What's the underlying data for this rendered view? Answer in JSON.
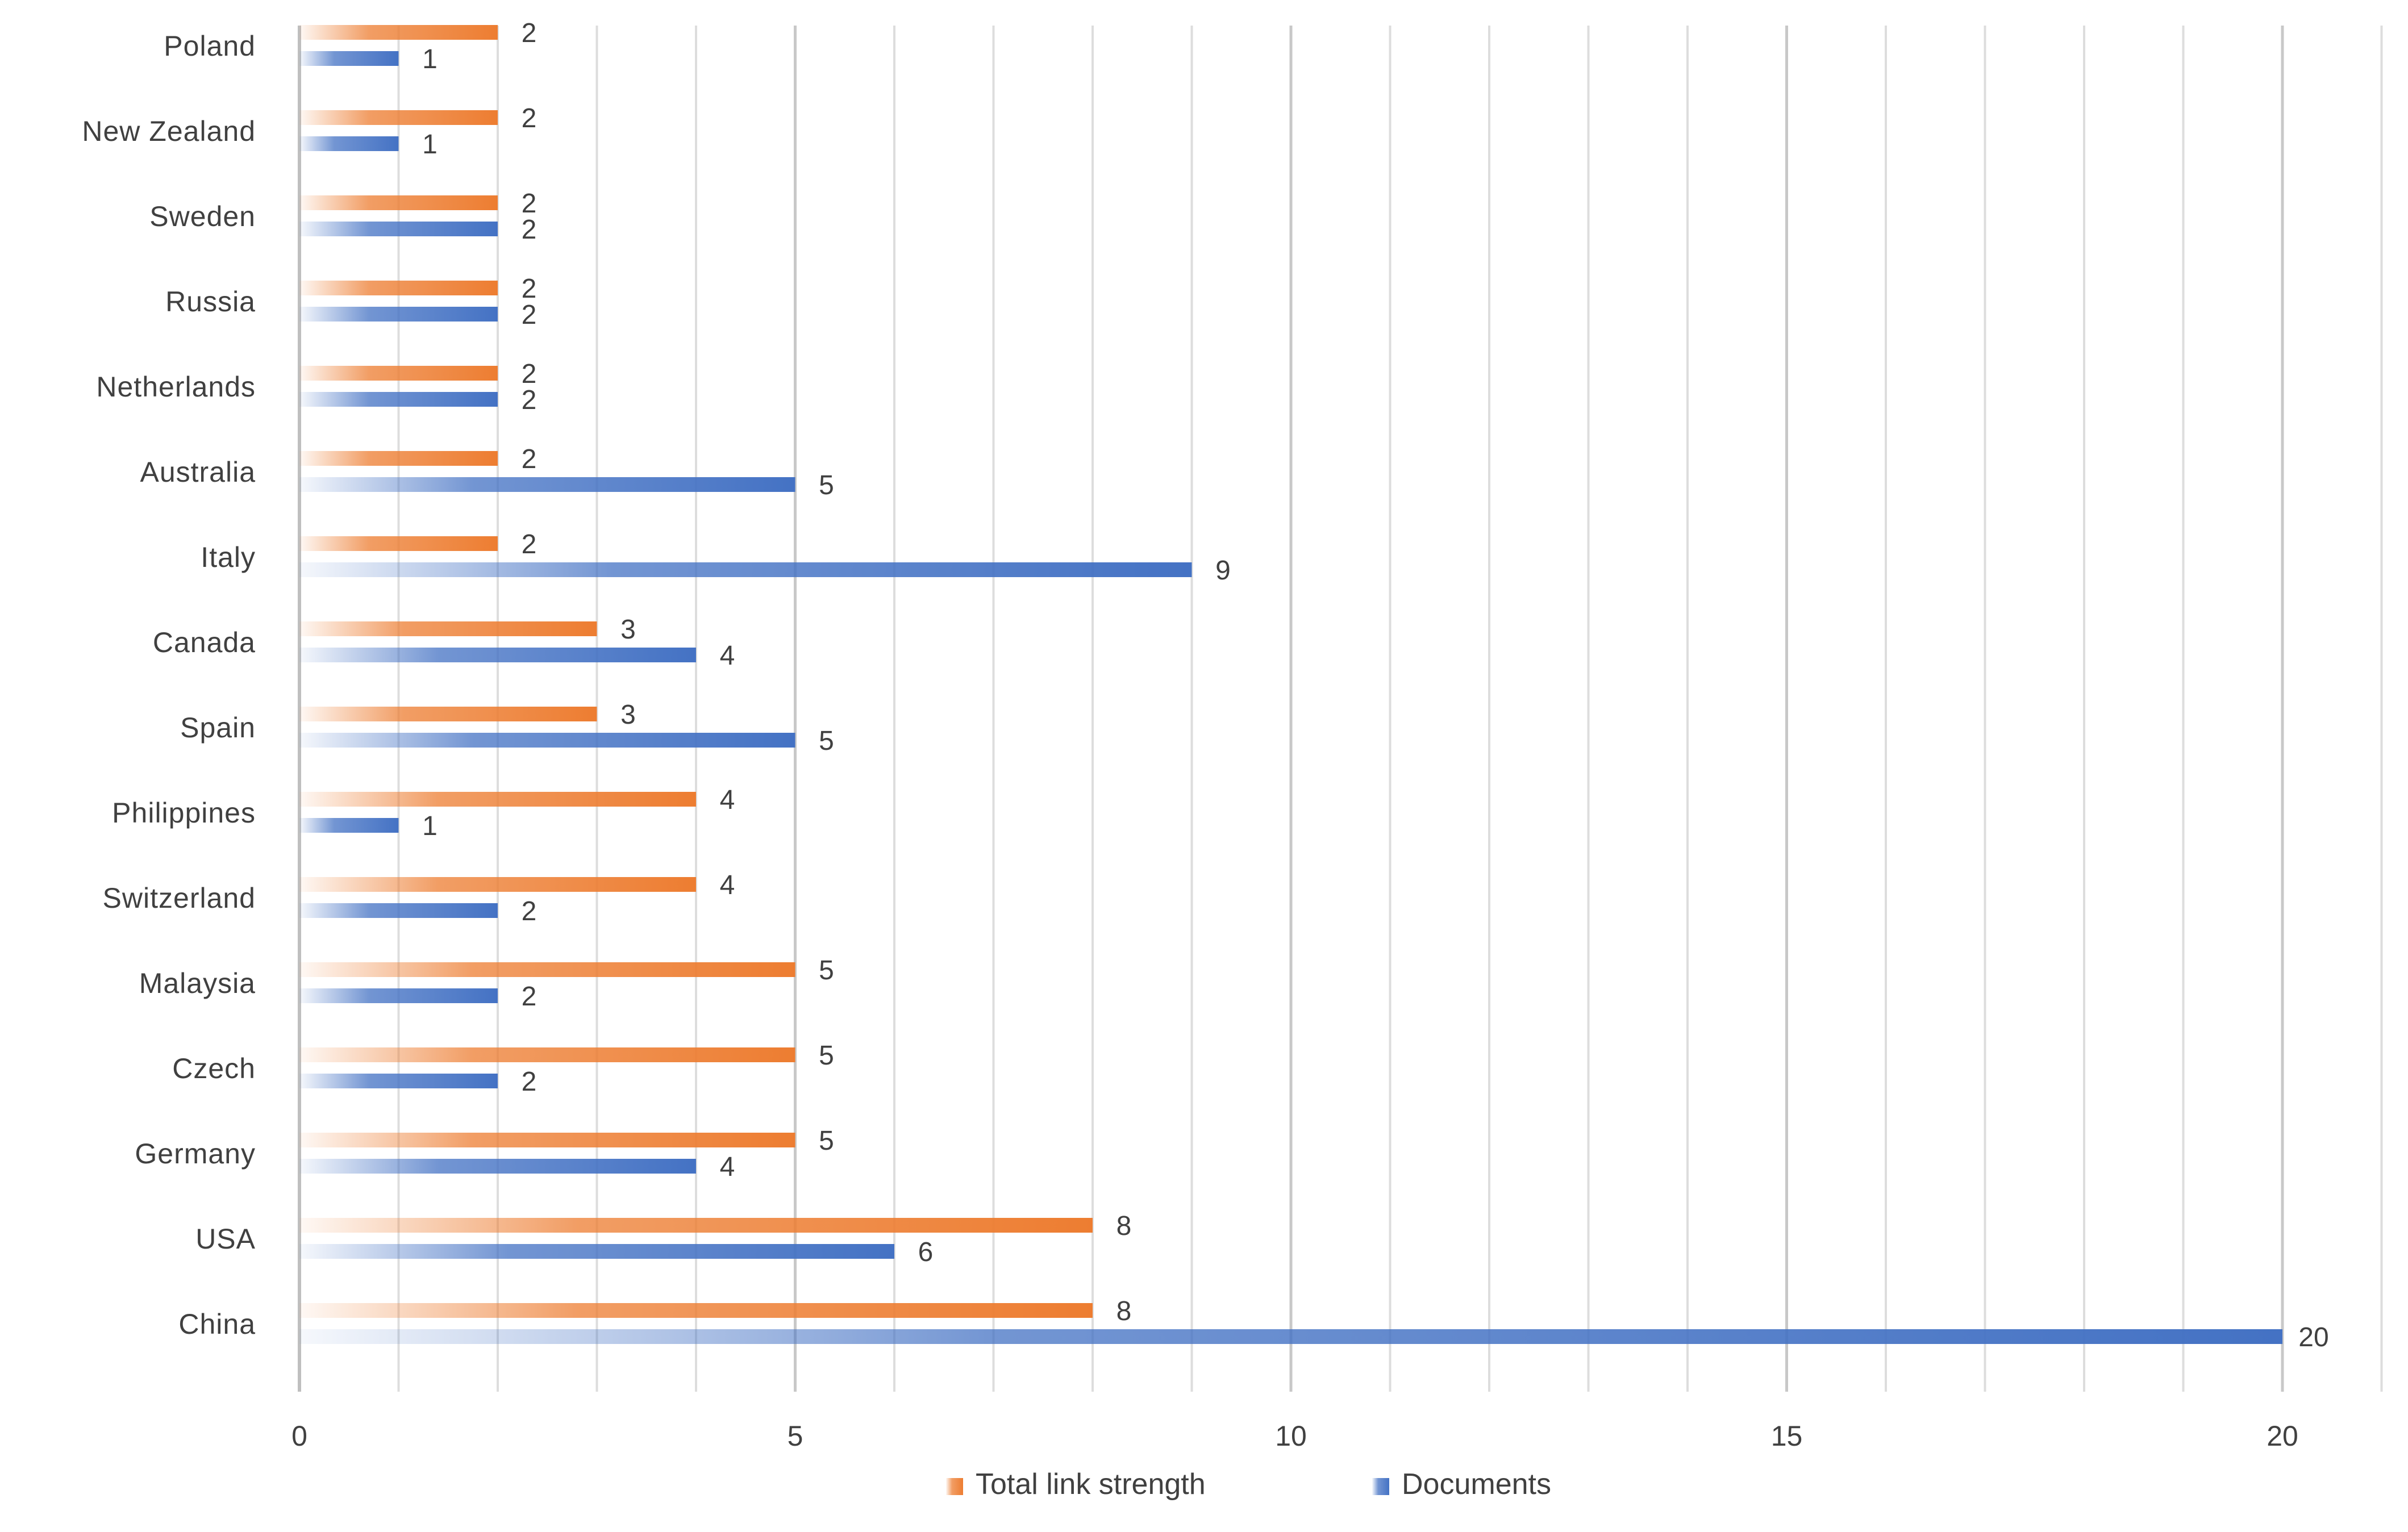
{
  "chart_data": {
    "type": "bar",
    "orientation": "horizontal",
    "categories": [
      "Poland",
      "New Zealand",
      "Sweden",
      "Russia",
      "Netherlands",
      "Australia",
      "Italy",
      "Canada",
      "Spain",
      "Philippines",
      "Switzerland",
      "Malaysia",
      "Czech",
      "Germany",
      "USA",
      "China"
    ],
    "series": [
      {
        "name": "Total link strength",
        "color": "#ED7D31",
        "values": [
          2,
          2,
          2,
          2,
          2,
          2,
          2,
          3,
          3,
          4,
          4,
          5,
          5,
          5,
          8,
          8
        ]
      },
      {
        "name": "Documents",
        "color": "#4472C4",
        "values": [
          1,
          1,
          2,
          2,
          2,
          5,
          9,
          4,
          5,
          1,
          2,
          2,
          2,
          4,
          6,
          20
        ]
      }
    ],
    "x_ticks": [
      "0",
      "5",
      "10",
      "15",
      "20"
    ],
    "xlim": [
      0,
      21
    ],
    "grid": true,
    "legend": "bottom",
    "title": "",
    "xlabel": "",
    "ylabel": ""
  }
}
